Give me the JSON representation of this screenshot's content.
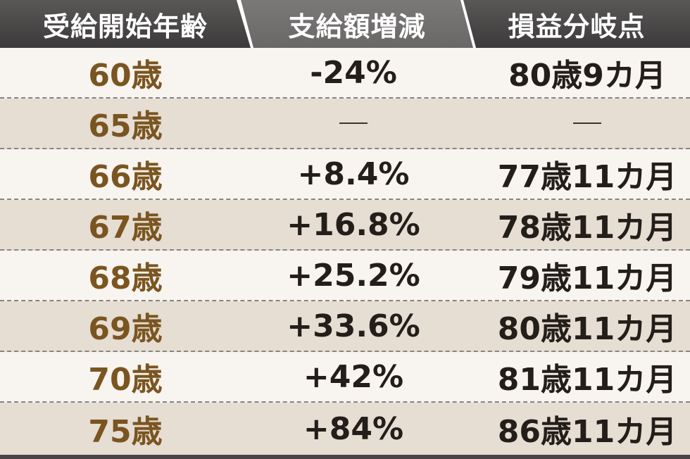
{
  "header": {
    "col1": "受給開始年齢",
    "col2": "支給額増減",
    "col3": "損益分岐点"
  },
  "rows": [
    {
      "age": "60歳",
      "change": "-24%",
      "breakeven": "80歳9カ月"
    },
    {
      "age": "65歳",
      "change": "—",
      "breakeven": "—"
    },
    {
      "age": "66歳",
      "change": "+8.4%",
      "breakeven": "77歳11カ月"
    },
    {
      "age": "67歳",
      "change": "+16.8%",
      "breakeven": "78歳11カ月"
    },
    {
      "age": "68歳",
      "change": "+25.2%",
      "breakeven": "79歳11カ月"
    },
    {
      "age": "69歳",
      "change": "+33.6%",
      "breakeven": "80歳11カ月"
    },
    {
      "age": "70歳",
      "change": "+42%",
      "breakeven": "81歳11カ月"
    },
    {
      "age": "75歳",
      "change": "+84%",
      "breakeven": "86歳11カ月"
    }
  ],
  "colors": {
    "header_dark": "#3c3a3a",
    "header_mid": "#6a6767",
    "row_light": "#f8f4ef",
    "row_dark": "#e6ddd3",
    "age_text": "#7a5520",
    "value_text": "#231e1a"
  }
}
